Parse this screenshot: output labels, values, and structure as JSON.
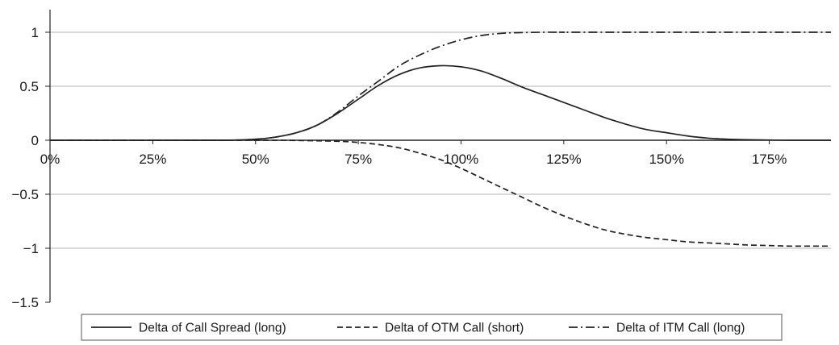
{
  "chart_data": {
    "type": "line",
    "title": "",
    "xlabel": "",
    "ylabel": "",
    "xlim": [
      0,
      1.9
    ],
    "ylim": [
      -1.5,
      1.2
    ],
    "x_ticks": [
      {
        "value": 0.0,
        "label": "0%"
      },
      {
        "value": 0.25,
        "label": "25%"
      },
      {
        "value": 0.5,
        "label": "50%"
      },
      {
        "value": 0.75,
        "label": "75%"
      },
      {
        "value": 1.0,
        "label": "100%"
      },
      {
        "value": 1.25,
        "label": "125%"
      },
      {
        "value": 1.5,
        "label": "150%"
      },
      {
        "value": 1.75,
        "label": "175%"
      }
    ],
    "y_ticks": [
      {
        "value": 1,
        "label": "1"
      },
      {
        "value": 0.5,
        "label": "0.5"
      },
      {
        "value": 0,
        "label": "0"
      },
      {
        "value": -0.5,
        "label": "−0.5"
      },
      {
        "value": -1,
        "label": "−1"
      },
      {
        "value": -1.5,
        "label": "−1.5"
      }
    ],
    "grid": true,
    "legend_position": "bottom",
    "series": [
      {
        "name": "Delta of Call Spread (long)",
        "style": "solid",
        "color": "#222222",
        "x": [
          0,
          0.4,
          0.5,
          0.55,
          0.6,
          0.65,
          0.7,
          0.75,
          0.8,
          0.85,
          0.9,
          0.95,
          1.0,
          1.05,
          1.1,
          1.15,
          1.2,
          1.25,
          1.3,
          1.35,
          1.4,
          1.45,
          1.5,
          1.55,
          1.6,
          1.65,
          1.7,
          1.75,
          1.8,
          1.9
        ],
        "y": [
          0,
          0,
          0.01,
          0.03,
          0.07,
          0.14,
          0.25,
          0.38,
          0.51,
          0.61,
          0.67,
          0.69,
          0.68,
          0.64,
          0.57,
          0.49,
          0.42,
          0.35,
          0.28,
          0.21,
          0.15,
          0.1,
          0.07,
          0.04,
          0.02,
          0.01,
          0.005,
          0.002,
          0,
          0
        ]
      },
      {
        "name": "Delta of OTM Call (short)",
        "style": "dashed",
        "color": "#222222",
        "x": [
          0,
          0.5,
          0.6,
          0.7,
          0.75,
          0.8,
          0.85,
          0.9,
          0.95,
          1.0,
          1.05,
          1.1,
          1.15,
          1.2,
          1.25,
          1.3,
          1.35,
          1.4,
          1.45,
          1.5,
          1.55,
          1.6,
          1.65,
          1.7,
          1.75,
          1.8,
          1.85,
          1.9
        ],
        "y": [
          0,
          0,
          -0.002,
          -0.01,
          -0.02,
          -0.04,
          -0.07,
          -0.12,
          -0.18,
          -0.26,
          -0.35,
          -0.44,
          -0.53,
          -0.62,
          -0.7,
          -0.77,
          -0.83,
          -0.87,
          -0.9,
          -0.92,
          -0.94,
          -0.95,
          -0.96,
          -0.97,
          -0.975,
          -0.98,
          -0.98,
          -0.98
        ]
      },
      {
        "name": "Delta of ITM Call (long)",
        "style": "dash-dot",
        "color": "#222222",
        "x": [
          0,
          0.4,
          0.5,
          0.55,
          0.6,
          0.65,
          0.7,
          0.75,
          0.8,
          0.85,
          0.9,
          0.95,
          1.0,
          1.05,
          1.1,
          1.15,
          1.2,
          1.25,
          1.3,
          1.9
        ],
        "y": [
          0,
          0,
          0.01,
          0.03,
          0.07,
          0.14,
          0.26,
          0.41,
          0.55,
          0.69,
          0.79,
          0.87,
          0.93,
          0.97,
          0.99,
          0.997,
          1.0,
          1.0,
          1.0,
          1.0
        ]
      }
    ]
  }
}
